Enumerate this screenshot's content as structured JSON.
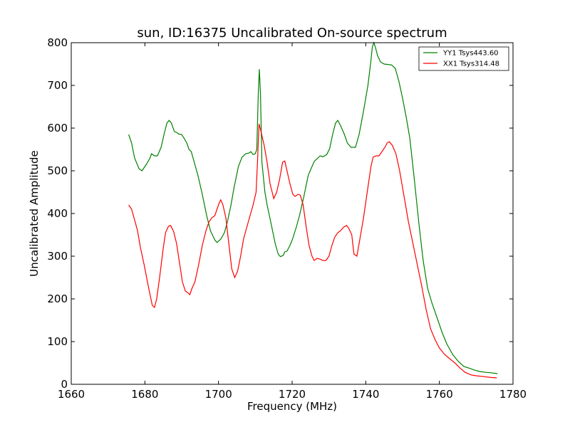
{
  "chart_data": {
    "type": "line",
    "title": "sun, ID:16375 Uncalibrated On-source spectrum",
    "xlabel": "Frequency (MHz)",
    "ylabel": "Uncalibrated Amplitude",
    "xlim": [
      1660,
      1780
    ],
    "ylim": [
      0,
      800
    ],
    "xticks": [
      1660,
      1680,
      1700,
      1720,
      1740,
      1760,
      1780
    ],
    "yticks": [
      0,
      100,
      200,
      300,
      400,
      500,
      600,
      700,
      800
    ],
    "grid": false,
    "legend_position": "top-right",
    "series": [
      {
        "name": "YY1 Tsys443.60",
        "color": "#008000",
        "points": [
          [
            1675.6,
            585
          ],
          [
            1676.4,
            565
          ],
          [
            1677.2,
            530
          ],
          [
            1678.4,
            505
          ],
          [
            1679.2,
            500
          ],
          [
            1680.4,
            515
          ],
          [
            1681.4,
            530
          ],
          [
            1681.8,
            540
          ],
          [
            1682.6,
            535
          ],
          [
            1683.4,
            535
          ],
          [
            1684.4,
            555
          ],
          [
            1685.2,
            585
          ],
          [
            1686.0,
            612
          ],
          [
            1686.6,
            618
          ],
          [
            1687.2,
            612
          ],
          [
            1688.0,
            592
          ],
          [
            1688.6,
            590
          ],
          [
            1689.2,
            586
          ],
          [
            1690.0,
            585
          ],
          [
            1690.6,
            577
          ],
          [
            1691.4,
            565
          ],
          [
            1692.0,
            550
          ],
          [
            1692.6,
            545
          ],
          [
            1693.4,
            520
          ],
          [
            1694.4,
            490
          ],
          [
            1695.6,
            445
          ],
          [
            1696.8,
            395
          ],
          [
            1697.8,
            360
          ],
          [
            1699.0,
            338
          ],
          [
            1699.6,
            332
          ],
          [
            1700.6,
            340
          ],
          [
            1701.6,
            355
          ],
          [
            1702.4,
            380
          ],
          [
            1703.4,
            420
          ],
          [
            1704.2,
            460
          ],
          [
            1705.4,
            510
          ],
          [
            1706.4,
            532
          ],
          [
            1707.4,
            540
          ],
          [
            1708.4,
            542
          ],
          [
            1708.8,
            545
          ],
          [
            1709.4,
            538
          ],
          [
            1710.0,
            540
          ],
          [
            1710.4,
            550
          ],
          [
            1710.8,
            680
          ],
          [
            1711.1,
            738
          ],
          [
            1711.4,
            680
          ],
          [
            1711.8,
            520
          ],
          [
            1712.6,
            450
          ],
          [
            1713.2,
            420
          ],
          [
            1714.2,
            380
          ],
          [
            1715.4,
            330
          ],
          [
            1716.2,
            305
          ],
          [
            1716.8,
            299
          ],
          [
            1717.6,
            302
          ],
          [
            1718.0,
            310
          ],
          [
            1718.6,
            312
          ],
          [
            1719.4,
            325
          ],
          [
            1720.2,
            342
          ],
          [
            1721.2,
            370
          ],
          [
            1722.0,
            395
          ],
          [
            1723.2,
            440
          ],
          [
            1724.4,
            490
          ],
          [
            1725.4,
            510
          ],
          [
            1726.0,
            522
          ],
          [
            1727.0,
            530
          ],
          [
            1727.6,
            535
          ],
          [
            1728.4,
            533
          ],
          [
            1729.4,
            538
          ],
          [
            1730.2,
            552
          ],
          [
            1731.0,
            585
          ],
          [
            1731.8,
            612
          ],
          [
            1732.4,
            618
          ],
          [
            1733.2,
            605
          ],
          [
            1734.2,
            585
          ],
          [
            1735.0,
            565
          ],
          [
            1736.0,
            555
          ],
          [
            1737.2,
            555
          ],
          [
            1738.2,
            585
          ],
          [
            1739.4,
            640
          ],
          [
            1740.6,
            700
          ],
          [
            1741.4,
            758
          ],
          [
            1741.8,
            790
          ],
          [
            1742.2,
            800
          ],
          [
            1742.6,
            790
          ],
          [
            1743.2,
            770
          ],
          [
            1744.0,
            755
          ],
          [
            1745.0,
            750
          ],
          [
            1746.0,
            749
          ],
          [
            1747.0,
            748
          ],
          [
            1748.0,
            740
          ],
          [
            1749.0,
            710
          ],
          [
            1750.0,
            670
          ],
          [
            1751.0,
            625
          ],
          [
            1752.0,
            575
          ],
          [
            1753.2,
            480
          ],
          [
            1754.4,
            380
          ],
          [
            1755.6,
            290
          ],
          [
            1756.8,
            225
          ],
          [
            1758.0,
            190
          ],
          [
            1759.4,
            155
          ],
          [
            1760.8,
            120
          ],
          [
            1762.0,
            95
          ],
          [
            1763.6,
            70
          ],
          [
            1765.0,
            55
          ],
          [
            1766.6,
            42
          ],
          [
            1768.0,
            38
          ],
          [
            1769.6,
            33
          ],
          [
            1771.0,
            30
          ],
          [
            1772.6,
            28
          ],
          [
            1774.0,
            27
          ],
          [
            1775.8,
            25
          ]
        ]
      },
      {
        "name": "XX1 Tsys314.48",
        "color": "#ff0000",
        "points": [
          [
            1675.6,
            420
          ],
          [
            1676.4,
            410
          ],
          [
            1677.2,
            385
          ],
          [
            1678.0,
            360
          ],
          [
            1678.8,
            320
          ],
          [
            1679.8,
            280
          ],
          [
            1680.8,
            235
          ],
          [
            1681.4,
            210
          ],
          [
            1682.0,
            185
          ],
          [
            1682.6,
            180
          ],
          [
            1683.2,
            200
          ],
          [
            1684.0,
            250
          ],
          [
            1685.0,
            320
          ],
          [
            1685.6,
            355
          ],
          [
            1686.4,
            370
          ],
          [
            1687.0,
            372
          ],
          [
            1687.8,
            358
          ],
          [
            1688.6,
            330
          ],
          [
            1689.4,
            285
          ],
          [
            1690.2,
            240
          ],
          [
            1691.0,
            218
          ],
          [
            1691.6,
            215
          ],
          [
            1692.2,
            210
          ],
          [
            1692.8,
            225
          ],
          [
            1693.6,
            240
          ],
          [
            1694.6,
            280
          ],
          [
            1695.6,
            325
          ],
          [
            1696.6,
            360
          ],
          [
            1697.4,
            380
          ],
          [
            1698.2,
            390
          ],
          [
            1699.0,
            395
          ],
          [
            1699.6,
            410
          ],
          [
            1700.2,
            425
          ],
          [
            1700.6,
            432
          ],
          [
            1701.2,
            420
          ],
          [
            1702.0,
            390
          ],
          [
            1702.8,
            330
          ],
          [
            1703.6,
            270
          ],
          [
            1704.4,
            250
          ],
          [
            1705.2,
            265
          ],
          [
            1706.0,
            300
          ],
          [
            1706.8,
            340
          ],
          [
            1707.6,
            365
          ],
          [
            1708.4,
            390
          ],
          [
            1709.4,
            420
          ],
          [
            1710.2,
            450
          ],
          [
            1710.6,
            520
          ],
          [
            1711.0,
            610
          ],
          [
            1711.6,
            590
          ],
          [
            1712.4,
            560
          ],
          [
            1713.2,
            520
          ],
          [
            1714.0,
            470
          ],
          [
            1715.0,
            435
          ],
          [
            1715.8,
            450
          ],
          [
            1716.6,
            480
          ],
          [
            1717.4,
            520
          ],
          [
            1718.0,
            523
          ],
          [
            1718.6,
            500
          ],
          [
            1719.4,
            470
          ],
          [
            1720.2,
            445
          ],
          [
            1720.8,
            440
          ],
          [
            1721.6,
            445
          ],
          [
            1722.2,
            443
          ],
          [
            1723.0,
            420
          ],
          [
            1723.8,
            370
          ],
          [
            1724.6,
            325
          ],
          [
            1725.4,
            300
          ],
          [
            1726.0,
            290
          ],
          [
            1726.8,
            295
          ],
          [
            1727.6,
            293
          ],
          [
            1728.4,
            290
          ],
          [
            1729.2,
            290
          ],
          [
            1730.0,
            300
          ],
          [
            1730.8,
            325
          ],
          [
            1731.6,
            345
          ],
          [
            1732.4,
            355
          ],
          [
            1733.2,
            360
          ],
          [
            1734.0,
            368
          ],
          [
            1734.8,
            372
          ],
          [
            1735.4,
            365
          ],
          [
            1736.2,
            350
          ],
          [
            1736.8,
            305
          ],
          [
            1737.6,
            300
          ],
          [
            1738.4,
            340
          ],
          [
            1739.4,
            390
          ],
          [
            1740.4,
            450
          ],
          [
            1741.4,
            510
          ],
          [
            1742.0,
            532
          ],
          [
            1742.8,
            535
          ],
          [
            1743.6,
            535
          ],
          [
            1744.4,
            545
          ],
          [
            1745.2,
            555
          ],
          [
            1745.8,
            565
          ],
          [
            1746.4,
            568
          ],
          [
            1747.2,
            560
          ],
          [
            1748.2,
            540
          ],
          [
            1749.2,
            500
          ],
          [
            1750.4,
            440
          ],
          [
            1751.6,
            380
          ],
          [
            1752.8,
            330
          ],
          [
            1754.0,
            280
          ],
          [
            1755.2,
            230
          ],
          [
            1756.4,
            175
          ],
          [
            1757.6,
            130
          ],
          [
            1758.8,
            105
          ],
          [
            1760.0,
            85
          ],
          [
            1761.4,
            70
          ],
          [
            1762.8,
            60
          ],
          [
            1764.2,
            50
          ],
          [
            1765.6,
            38
          ],
          [
            1767.0,
            28
          ],
          [
            1768.6,
            22
          ],
          [
            1770.0,
            20
          ],
          [
            1772.0,
            18
          ],
          [
            1774.0,
            16
          ],
          [
            1775.6,
            15
          ]
        ]
      }
    ]
  }
}
